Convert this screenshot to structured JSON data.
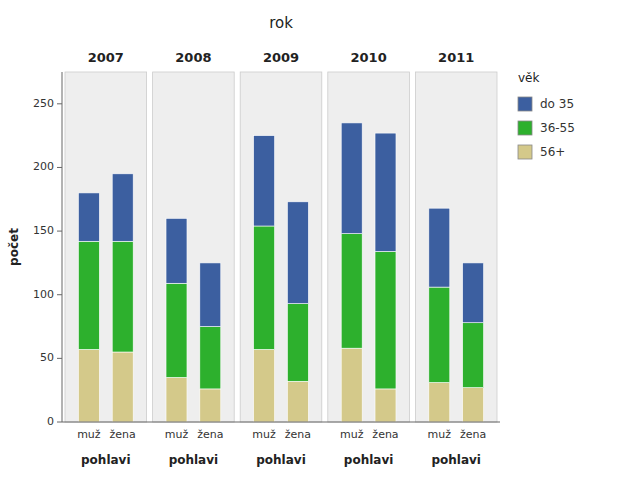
{
  "chart_data": {
    "type": "bar",
    "stacked": true,
    "title": "rok",
    "ylabel": "počet",
    "xlabel": "pohlavi",
    "groups": [
      "2007",
      "2008",
      "2009",
      "2010",
      "2011"
    ],
    "categories": [
      "muž",
      "žena",
      "muž",
      "žena",
      "muž",
      "žena",
      "muž",
      "žena",
      "muž",
      "žena"
    ],
    "series": [
      {
        "name": "56+",
        "color": "#d4c98a",
        "values": [
          57,
          55,
          35,
          26,
          57,
          32,
          58,
          26,
          31,
          27
        ]
      },
      {
        "name": "36-55",
        "color": "#2db02d",
        "values": [
          85,
          87,
          74,
          49,
          97,
          61,
          90,
          108,
          75,
          51
        ]
      },
      {
        "name": "do 35",
        "color": "#3c5fa0",
        "values": [
          38,
          53,
          51,
          50,
          71,
          80,
          87,
          93,
          62,
          47
        ]
      }
    ],
    "ylim": [
      0,
      275
    ],
    "yticks": [
      0,
      50,
      100,
      150,
      200,
      250
    ],
    "grid": false,
    "legend": "right",
    "legend_title": "věk"
  }
}
